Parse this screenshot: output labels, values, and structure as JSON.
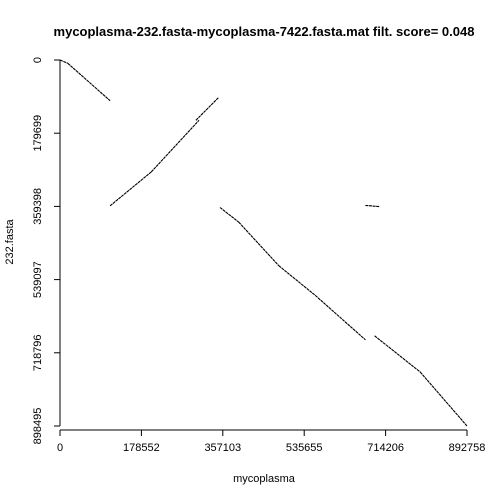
{
  "chart_data": {
    "type": "scatter",
    "title": "mycoplasma-232.fasta-mycoplasma-7422.fasta.mat filt. score= 0.048",
    "xlabel": "mycoplasma",
    "ylabel": "232.fasta",
    "xlim": [
      0,
      892758
    ],
    "ylim": [
      898495,
      0
    ],
    "y_axis_inverted": true,
    "grid": false,
    "legend": "none",
    "x_ticks": [
      0,
      178552,
      357103,
      535655,
      714206,
      892758
    ],
    "x_tick_labels": [
      "0",
      "178552",
      "357103",
      "535655",
      "714206",
      "892758"
    ],
    "y_ticks": [
      0,
      179699,
      359398,
      539097,
      718796,
      898495
    ],
    "y_tick_labels": [
      "0",
      "179699",
      "359398",
      "539097",
      "718796",
      "898495"
    ],
    "color": "#000000",
    "series": [
      {
        "x": [
          0,
          17000
        ],
        "y": [
          0,
          8000
        ]
      },
      {
        "x": [
          17000,
          110000
        ],
        "y": [
          8000,
          100000
        ]
      },
      {
        "x": [
          110000,
          200000
        ],
        "y": [
          358000,
          275000
        ]
      },
      {
        "x": [
          200000,
          305000
        ],
        "y": [
          275000,
          148000
        ]
      },
      {
        "x": [
          298000,
          348000
        ],
        "y": [
          148000,
          92000
        ]
      },
      {
        "x": [
          351000,
          392000
        ],
        "y": [
          362000,
          398000
        ]
      },
      {
        "x": [
          392000,
          480000
        ],
        "y": [
          398000,
          505000
        ]
      },
      {
        "x": [
          480000,
          560000
        ],
        "y": [
          505000,
          578000
        ]
      },
      {
        "x": [
          560000,
          670000
        ],
        "y": [
          578000,
          687000
        ]
      },
      {
        "x": [
          670000,
          700000
        ],
        "y": [
          357000,
          360000
        ]
      },
      {
        "x": [
          690000,
          790000
        ],
        "y": [
          677000,
          766000
        ]
      },
      {
        "x": [
          790000,
          892758
        ],
        "y": [
          766000,
          898495
        ]
      }
    ]
  }
}
